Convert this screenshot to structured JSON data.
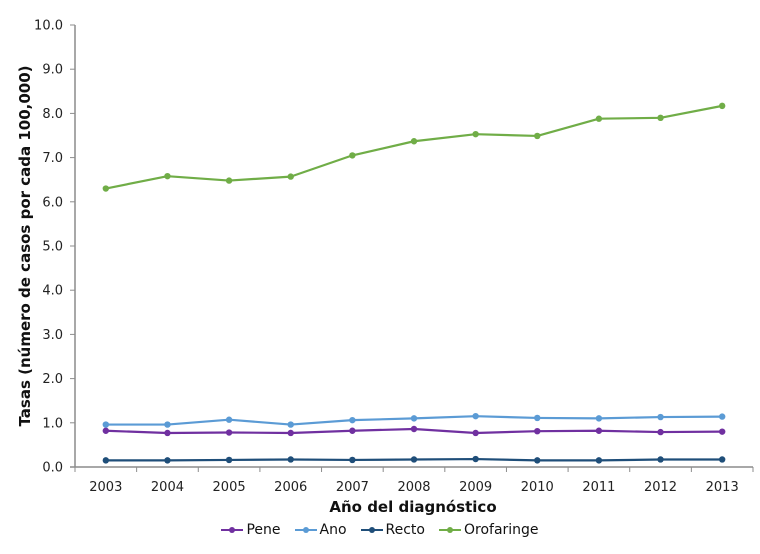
{
  "chart_data": {
    "type": "line",
    "title": "",
    "xlabel": "Año del diagnóstico",
    "ylabel": "Tasas (número de casos por cada 100,000)",
    "ylim": [
      0,
      10
    ],
    "yticks": [
      "0.0",
      "1.0",
      "2.0",
      "3.0",
      "4.0",
      "5.0",
      "6.0",
      "7.0",
      "8.0",
      "9.0",
      "10.0"
    ],
    "categories": [
      "2003",
      "2004",
      "2005",
      "2006",
      "2007",
      "2008",
      "2009",
      "2010",
      "2011",
      "2012",
      "2013"
    ],
    "grid": false,
    "legend_position": "bottom",
    "series": [
      {
        "name": "Pene",
        "color": "#7030A0",
        "values": [
          0.82,
          0.77,
          0.78,
          0.77,
          0.82,
          0.86,
          0.77,
          0.81,
          0.82,
          0.79,
          0.8
        ]
      },
      {
        "name": "Ano",
        "color": "#5B9BD5",
        "values": [
          0.96,
          0.96,
          1.07,
          0.96,
          1.06,
          1.1,
          1.15,
          1.11,
          1.1,
          1.13,
          1.14
        ]
      },
      {
        "name": "Recto",
        "color": "#1F4E79",
        "values": [
          0.15,
          0.15,
          0.16,
          0.17,
          0.16,
          0.17,
          0.18,
          0.15,
          0.15,
          0.17,
          0.17
        ]
      },
      {
        "name": "Orofaringe",
        "color": "#70AD47",
        "values": [
          6.3,
          6.58,
          6.48,
          6.57,
          7.05,
          7.37,
          7.53,
          7.49,
          7.88,
          7.9,
          8.17
        ]
      }
    ]
  }
}
